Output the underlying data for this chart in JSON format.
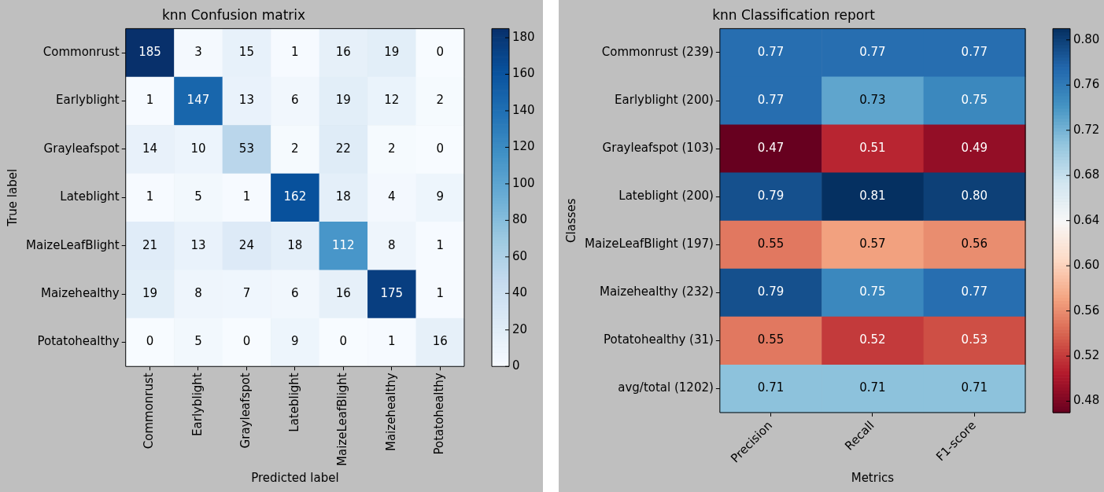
{
  "chart_data": [
    {
      "type": "heatmap",
      "title": "knn Confusion matrix",
      "xlabel": "Predicted label",
      "ylabel": "True label",
      "categories": [
        "Commonrust",
        "Earlyblight",
        "Grayleafspot",
        "Lateblight",
        "MaizeLeafBlight",
        "Maizehealthy",
        "Potatohealthy"
      ],
      "y_categories": [
        "Commonrust",
        "Earlyblight",
        "Grayleafspot",
        "Lateblight",
        "MaizeLeafBlight",
        "Maizehealthy",
        "Potatohealthy"
      ],
      "cells": [
        [
          185,
          3,
          15,
          1,
          16,
          19,
          0
        ],
        [
          1,
          147,
          13,
          6,
          19,
          12,
          2
        ],
        [
          14,
          10,
          53,
          2,
          22,
          2,
          0
        ],
        [
          1,
          5,
          1,
          162,
          18,
          4,
          9
        ],
        [
          21,
          13,
          24,
          18,
          112,
          8,
          1
        ],
        [
          19,
          8,
          7,
          6,
          16,
          175,
          1
        ],
        [
          0,
          5,
          0,
          9,
          0,
          1,
          16
        ]
      ],
      "data_labels": true,
      "clim": [
        0,
        185
      ],
      "cticks": [
        0,
        20,
        40,
        60,
        80,
        100,
        120,
        140,
        160,
        180
      ]
    },
    {
      "type": "heatmap",
      "title": "knn Classification report",
      "xlabel": "Metrics",
      "ylabel": "Classes",
      "categories": [
        "Precision",
        "Recall",
        "F1-score"
      ],
      "y_categories": [
        "Commonrust (239)",
        "Earlyblight (200)",
        "Grayleafspot (103)",
        "Lateblight (200)",
        "MaizeLeafBlight (197)",
        "Maizehealthy (232)",
        "Potatohealthy (31)",
        "avg/total (1202)"
      ],
      "cells": [
        [
          0.77,
          0.77,
          0.77
        ],
        [
          0.77,
          0.73,
          0.75
        ],
        [
          0.47,
          0.51,
          0.49
        ],
        [
          0.79,
          0.81,
          0.8
        ],
        [
          0.55,
          0.57,
          0.56
        ],
        [
          0.79,
          0.75,
          0.77
        ],
        [
          0.55,
          0.52,
          0.53
        ],
        [
          0.71,
          0.71,
          0.71
        ]
      ],
      "cell_labels": [
        [
          "0.77",
          "0.77",
          "0.77"
        ],
        [
          "0.77",
          "0.73",
          "0.75"
        ],
        [
          "0.47",
          "0.51",
          "0.49"
        ],
        [
          "0.79",
          "0.81",
          "0.80"
        ],
        [
          "0.55",
          "0.57",
          "0.56"
        ],
        [
          "0.79",
          "0.75",
          "0.77"
        ],
        [
          "0.55",
          "0.52",
          "0.53"
        ],
        [
          "0.71",
          "0.71",
          "0.71"
        ]
      ],
      "clim": [
        0.47,
        0.81
      ],
      "cticks": [
        {
          "value": 0.48,
          "label": "0.48"
        },
        {
          "value": 0.52,
          "label": "0.52"
        },
        {
          "value": 0.56,
          "label": "0.56"
        },
        {
          "value": 0.6,
          "label": "0.60"
        },
        {
          "value": 0.64,
          "label": "0.64"
        },
        {
          "value": 0.68,
          "label": "0.68"
        },
        {
          "value": 0.72,
          "label": "0.72"
        },
        {
          "value": 0.76,
          "label": "0.76"
        },
        {
          "value": 0.8,
          "label": "0.80"
        }
      ]
    }
  ]
}
